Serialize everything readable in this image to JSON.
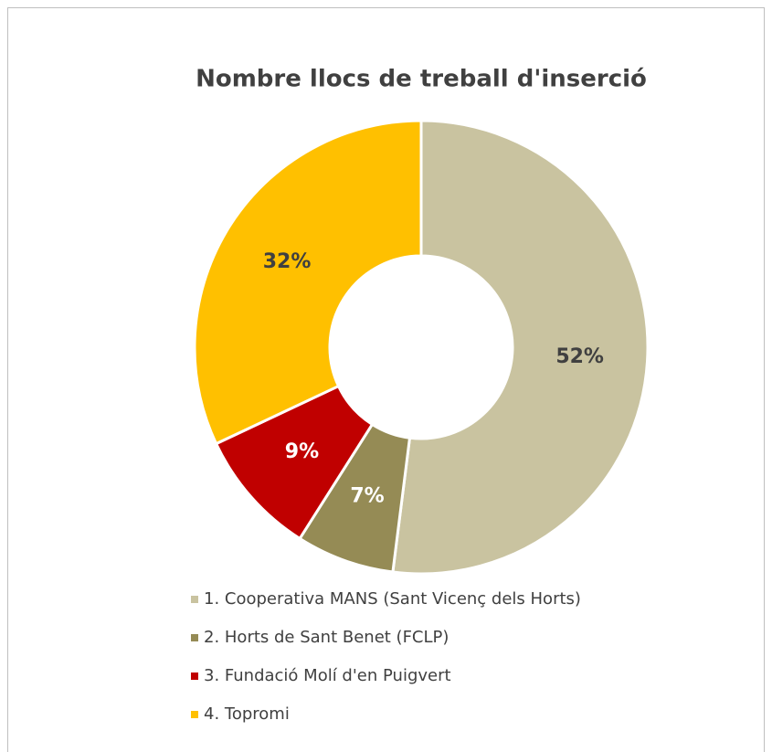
{
  "chart_data": {
    "type": "donut",
    "title": "Nombre llocs de treball d'inserció",
    "categories": [
      "1. Cooperativa MANS (Sant Vicenç dels Horts)",
      "2. Horts de Sant Benet (FCLP)",
      "3. Fundació Molí d'en Puigvert",
      "4. Topromi"
    ],
    "values": [
      52,
      7,
      9,
      32
    ],
    "value_labels": [
      "52%",
      "7%",
      "9%",
      "32%"
    ],
    "colors": [
      "#c9c3a0",
      "#958b55",
      "#c00000",
      "#ffc000"
    ],
    "label_colors": [
      "#404040",
      "#ffffff",
      "#ffffff",
      "#404040"
    ],
    "legend": "bottom"
  }
}
